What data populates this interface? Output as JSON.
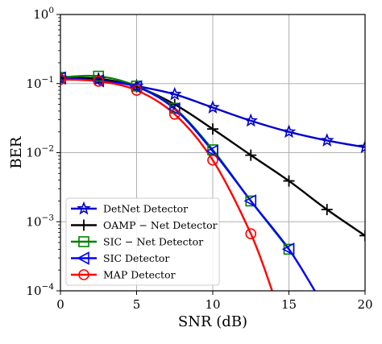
{
  "chart_data": {
    "type": "line",
    "title": "",
    "xlabel": "SNR (dB)",
    "ylabel": "BER",
    "xlim": [
      0,
      20
    ],
    "ylim": [
      0.0001,
      1
    ],
    "yscale": "log",
    "grid": true,
    "legend_position": "lower-left",
    "x_ticks": [
      0,
      5,
      10,
      15,
      20
    ],
    "x_tick_labels": [
      "0",
      "5",
      "10",
      "15",
      "20"
    ],
    "y_ticks": [
      1,
      0.1,
      0.01,
      0.001,
      0.0001
    ],
    "y_tick_labels": [
      {
        "base": "10",
        "exp": "0"
      },
      {
        "base": "10",
        "exp": "−1"
      },
      {
        "base": "10",
        "exp": "−2"
      },
      {
        "base": "10",
        "exp": "−3"
      },
      {
        "base": "10",
        "exp": "−4"
      }
    ],
    "series": [
      {
        "name": "DetNet Detector",
        "color": "#0000cc",
        "marker": "star",
        "x": [
          0,
          2.5,
          5,
          7.5,
          10,
          12.5,
          15,
          17.5,
          20
        ],
        "y": [
          0.12,
          0.115,
          0.092,
          0.07,
          0.045,
          0.029,
          0.02,
          0.015,
          0.012
        ]
      },
      {
        "name": "OAMP − Net Detector",
        "color": "#000000",
        "marker": "plus",
        "x": [
          0,
          2.5,
          5,
          7.5,
          10,
          12.5,
          15,
          17.5,
          20
        ],
        "y": [
          0.12,
          0.118,
          0.09,
          0.05,
          0.022,
          0.0092,
          0.0039,
          0.0015,
          0.00063
        ]
      },
      {
        "name": "SIC − Net Detector",
        "color": "#008000",
        "marker": "square",
        "x": [
          0,
          2.5,
          5,
          7.5,
          10,
          12.5,
          15
        ],
        "y": [
          0.123,
          0.128,
          0.092,
          0.044,
          0.011,
          0.002,
          0.0004
        ]
      },
      {
        "name": "SIC Detector",
        "color": "#0000ff",
        "marker": "triangle-left",
        "x": [
          0,
          2.5,
          5,
          7.5,
          10,
          12.5,
          15,
          16.7
        ],
        "y": [
          0.12,
          0.11,
          0.09,
          0.043,
          0.0105,
          0.002,
          0.0004,
          0.0001
        ]
      },
      {
        "name": "MAP Detector",
        "color": "#ff0000",
        "marker": "circle",
        "x": [
          0,
          2.5,
          5,
          7.5,
          10,
          12.5,
          13.9
        ],
        "y": [
          0.115,
          0.108,
          0.08,
          0.036,
          0.0078,
          0.00067,
          0.0001
        ]
      }
    ]
  }
}
